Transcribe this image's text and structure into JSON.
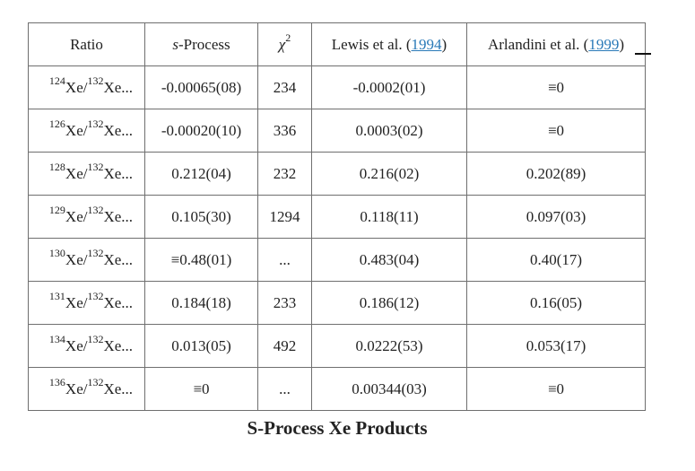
{
  "table": {
    "headers": {
      "ratio": "Ratio",
      "s_process_prefix": "s",
      "s_process_rest": "-Process",
      "chi_base": "χ",
      "chi_exp": "2",
      "lewis_text": "Lewis et al. (",
      "lewis_year": "1994",
      "lewis_close": ")",
      "arlandini_text": "Arlandini et al. (",
      "arlandini_year": "1999",
      "arlandini_close": ")"
    },
    "rows": [
      {
        "num_mass": "124",
        "num_el": "Xe",
        "sep": "/",
        "den_mass": "132",
        "den_el": "Xe...",
        "s_process": "-0.00065(08)",
        "chi2": "234",
        "lewis": "-0.0002(01)",
        "arlandini": "≡0"
      },
      {
        "num_mass": "126",
        "num_el": "Xe",
        "sep": "/",
        "den_mass": "132",
        "den_el": "Xe...",
        "s_process": "-0.00020(10)",
        "chi2": "336",
        "lewis": "0.0003(02)",
        "arlandini": "≡0"
      },
      {
        "num_mass": "128",
        "num_el": "Xe",
        "sep": "/",
        "den_mass": "132",
        "den_el": "Xe...",
        "s_process": "0.212(04)",
        "chi2": "232",
        "lewis": "0.216(02)",
        "arlandini": "0.202(89)"
      },
      {
        "num_mass": "129",
        "num_el": "Xe",
        "sep": "/",
        "den_mass": "132",
        "den_el": "Xe...",
        "s_process": "0.105(30)",
        "chi2": "1294",
        "lewis": "0.118(11)",
        "arlandini": "0.097(03)"
      },
      {
        "num_mass": "130",
        "num_el": "Xe",
        "sep": "/",
        "den_mass": "132",
        "den_el": "Xe...",
        "s_process": "≡0.48(01)",
        "chi2": "...",
        "lewis": "0.483(04)",
        "arlandini": "0.40(17)"
      },
      {
        "num_mass": "131",
        "num_el": "Xe",
        "sep": "/",
        "den_mass": "132",
        "den_el": "Xe...",
        "s_process": "0.184(18)",
        "chi2": "233",
        "lewis": "0.186(12)",
        "arlandini": "0.16(05)"
      },
      {
        "num_mass": "134",
        "num_el": "Xe",
        "sep": "/",
        "den_mass": "132",
        "den_el": "Xe...",
        "s_process": "0.013(05)",
        "chi2": "492",
        "lewis": "0.0222(53)",
        "arlandini": "0.053(17)"
      },
      {
        "num_mass": "136",
        "num_el": "Xe",
        "sep": "/",
        "den_mass": "132",
        "den_el": "Xe...",
        "s_process": "≡0",
        "chi2": "...",
        "lewis": "0.00344(03)",
        "arlandini": "≡0"
      }
    ]
  },
  "caption": "S-Process Xe Products",
  "colors": {
    "link": "#2a7ab8",
    "border": "#6f6f6f",
    "text": "#222222"
  }
}
